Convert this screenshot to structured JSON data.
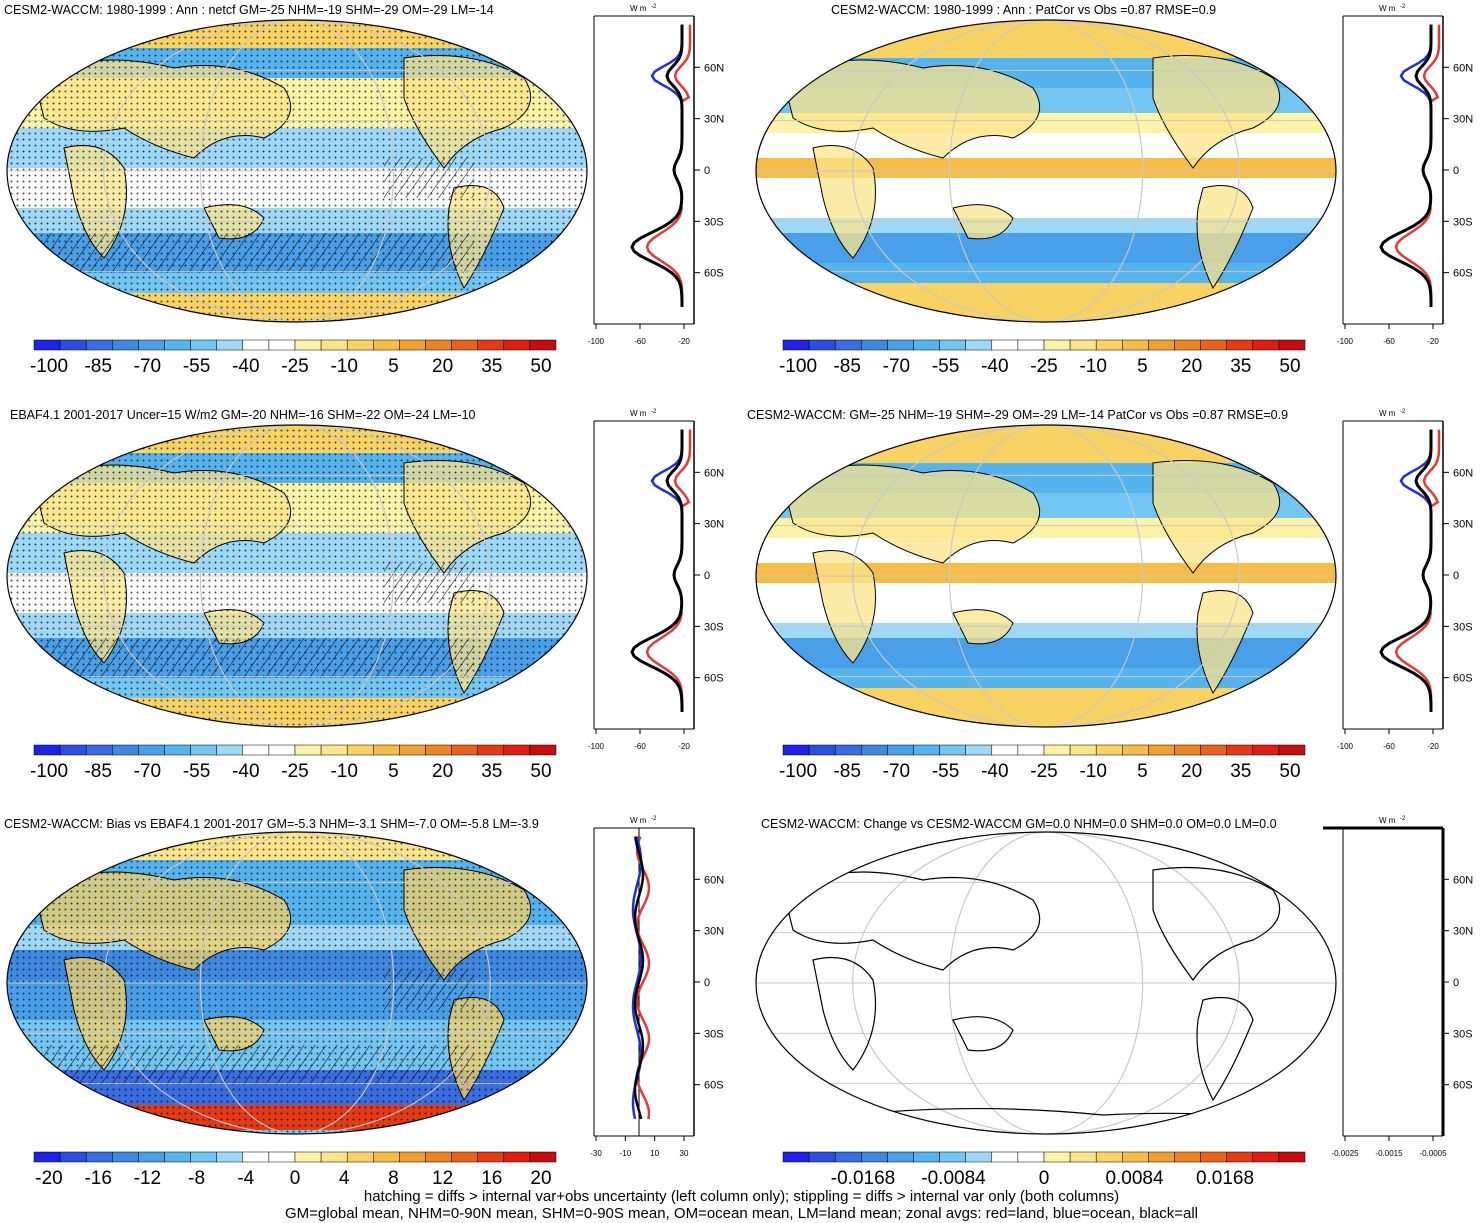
{
  "colors": {
    "diverging": [
      "#1e22e8",
      "#2a4fe0",
      "#3a6ee0",
      "#3f88e0",
      "#4aa0e8",
      "#55b4ee",
      "#73c6f2",
      "#9dd8f7",
      "#ffffff",
      "#ffffff",
      "#fbf4a8",
      "#fbe489",
      "#f8d263",
      "#f5bd48",
      "#f0a030",
      "#ec8424",
      "#e9621c",
      "#e53a16",
      "#de1e12",
      "#c40e0e"
    ],
    "land": "#e53935",
    "ocean": "#1f2ee0",
    "all": "#000000",
    "ocean_fill": "#f2c042",
    "grid": "#c8c8c8"
  },
  "panels": [
    {
      "id": "model",
      "title": "CESM2-WACCM: 1980-1999 : Ann : netcf GM=-25 NHM=-19 SHM=-29 OM=-29 LM=-14",
      "map": "mean",
      "hatch": true,
      "stipple": true,
      "cbar": [
        "-100",
        "-85",
        "-70",
        "-55",
        "-40",
        "-25",
        "-10",
        "5",
        "20",
        "35",
        "50"
      ],
      "zonal": {
        "units": "W m",
        "sup": "-2",
        "xticks": [
          "-100",
          "-60",
          "-20"
        ],
        "yticks": [
          "60N",
          "30N",
          "0",
          "30S",
          "60S"
        ]
      }
    },
    {
      "id": "model-anom",
      "title": "CESM2-WACCM: 1980-1999 : Ann : PatCor vs Obs =0.87 RMSE=0.9",
      "map": "smooth",
      "hatch": false,
      "stipple": false,
      "cbar": [
        "-100",
        "-85",
        "-70",
        "-55",
        "-40",
        "-25",
        "-10",
        "5",
        "20",
        "35",
        "50"
      ],
      "zonal": {
        "units": "W m",
        "sup": "-2",
        "xticks": [
          "-100",
          "-60",
          "-20"
        ],
        "yticks": [
          "60N",
          "30N",
          "0",
          "30S",
          "60S"
        ]
      }
    },
    {
      "id": "obs",
      "title": "EBAF4.1 2001-2017 Uncer=15 W/m2 GM=-20 NHM=-16 SHM=-22 OM=-24 LM=-10",
      "map": "mean",
      "hatch": true,
      "stipple": true,
      "cbar": [
        "-100",
        "-85",
        "-70",
        "-55",
        "-40",
        "-25",
        "-10",
        "5",
        "20",
        "35",
        "50"
      ],
      "zonal": {
        "units": "W m",
        "sup": "-2",
        "xticks": [
          "-100",
          "-60",
          "-20"
        ],
        "yticks": [
          "60N",
          "30N",
          "0",
          "30S",
          "60S"
        ]
      }
    },
    {
      "id": "model2",
      "title": "CESM2-WACCM: GM=-25 NHM=-19 SHM=-29 OM=-29 LM=-14 PatCor vs Obs =0.87 RMSE=0.9",
      "map": "smooth",
      "hatch": false,
      "stipple": false,
      "cbar": [
        "-100",
        "-85",
        "-70",
        "-55",
        "-40",
        "-25",
        "-10",
        "5",
        "20",
        "35",
        "50"
      ],
      "zonal": {
        "units": "W m",
        "sup": "-2",
        "xticks": [
          "-100",
          "-60",
          "-20"
        ],
        "yticks": [
          "60N",
          "30N",
          "0",
          "30S",
          "60S"
        ]
      }
    },
    {
      "id": "bias",
      "title": "CESM2-WACCM: Bias vs EBAF4.1 2001-2017 GM=-5.3 NHM=-3.1 SHM=-7.0 OM=-5.8 LM=-3.9",
      "map": "bias",
      "hatch": true,
      "stipple": true,
      "cbar": [
        "-20",
        "-16",
        "-12",
        "-8",
        "-4",
        "0",
        "4",
        "8",
        "12",
        "16",
        "20"
      ],
      "zonal": {
        "units": "W m",
        "sup": "-2",
        "xticks": [
          "-30",
          "-10",
          "10",
          "30"
        ],
        "yticks": [
          "60N",
          "30N",
          "0",
          "30S",
          "60S"
        ]
      }
    },
    {
      "id": "change",
      "title": "CESM2-WACCM: Change vs CESM2-WACCM GM=0.0 NHM=0.0 SHM=0.0 OM=0.0 LM=0.0",
      "map": "blank",
      "hatch": false,
      "stipple": false,
      "cbar": [
        "-0.0168",
        "-0.0084",
        "0",
        "0.0084",
        "0.0168"
      ],
      "zonal": {
        "units": "W m",
        "sup": "-2",
        "xticks": [
          "-0.0025",
          "-0.0015",
          "-0.0005"
        ],
        "yticks": [
          "60N",
          "30N",
          "0",
          "30S",
          "60S"
        ]
      }
    }
  ],
  "footer": [
    "hatching = diffs > internal var+obs uncertainty (left column only); stippling = diffs > internal var only (both columns)",
    "GM=global mean, NHM=0-90N mean, SHM=0-90S mean, OM=ocean mean, LM=land mean; zonal avgs: red=land, blue=ocean, black=all"
  ]
}
